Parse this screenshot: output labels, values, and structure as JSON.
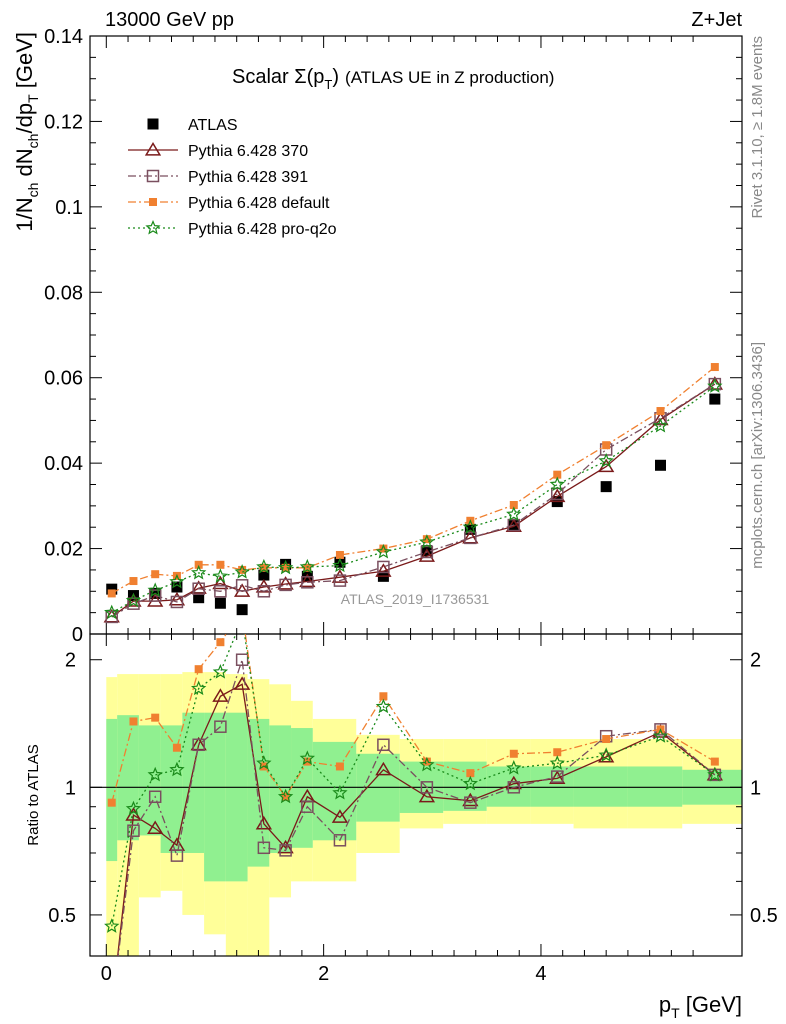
{
  "header": {
    "left": "13000 GeV pp",
    "right": "Z+Jet"
  },
  "side": {
    "rivet": "Rivet 3.1.10, ≥ 1.8M events",
    "mcplots": "mcplots.cern.ch [arXiv:1306.3436]"
  },
  "watermark": "ATLAS_2019_I1736531",
  "title": {
    "main": "Scalar Σ(p",
    "sub": "T",
    "close": ")",
    "rest": "(ATLAS UE in Z production)"
  },
  "colors": {
    "atlas": "#000000",
    "p370": "#7a1a1a",
    "p391": "#7a4f5f",
    "pdefault": "#f08030",
    "pq2o": "#1a8a1a",
    "band_inner": "#90f090",
    "band_outer": "#ffff99"
  },
  "chart_data": [
    {
      "type": "scatter",
      "panel": "main",
      "ylabel": "1/N_ch dN_ch/dp_T [GeV]",
      "xlim": [
        -0.15,
        5.85
      ],
      "ylim": [
        0,
        0.14
      ],
      "yticks": [
        0,
        0.02,
        0.04,
        0.06,
        0.08,
        0.1,
        0.12,
        0.14
      ],
      "tick_labels": [
        "0",
        "0.02",
        "0.04",
        "0.06",
        "0.08",
        "0.1",
        "0.12",
        "0.14"
      ],
      "x": [
        0.05,
        0.25,
        0.45,
        0.65,
        0.85,
        1.05,
        1.25,
        1.45,
        1.65,
        1.85,
        2.15,
        2.55,
        2.95,
        3.35,
        3.75,
        4.15,
        4.6,
        5.1,
        5.6
      ],
      "series": [
        {
          "name": "ATLAS",
          "key": "atlas",
          "marker": "square",
          "values": [
            0.0105,
            0.009,
            0.0095,
            0.011,
            0.0085,
            0.0072,
            0.0057,
            0.0138,
            0.0163,
            0.0135,
            0.0168,
            0.0135,
            0.0195,
            0.0245,
            0.0255,
            0.031,
            0.0345,
            0.0395,
            0.055
          ]
        },
        {
          "name": "Pythia 6.428 370",
          "key": "p370",
          "marker": "triangle",
          "values": [
            0.004,
            0.0077,
            0.0077,
            0.008,
            0.0107,
            0.0118,
            0.01,
            0.011,
            0.0117,
            0.0123,
            0.0133,
            0.0147,
            0.0182,
            0.0225,
            0.0252,
            0.0322,
            0.0392,
            0.0502,
            0.0585
          ]
        },
        {
          "name": "Pythia 6.428 391",
          "key": "p391",
          "marker": "opensquare",
          "values": [
            0.004,
            0.0071,
            0.009,
            0.0075,
            0.0106,
            0.01,
            0.0114,
            0.01,
            0.0115,
            0.0121,
            0.0125,
            0.0157,
            0.0192,
            0.0225,
            0.0255,
            0.0328,
            0.0432,
            0.0505,
            0.0585
          ]
        },
        {
          "name": "Pythia 6.428 default",
          "key": "pdefault",
          "marker": "filledsmallsquare",
          "values": [
            0.0095,
            0.0124,
            0.014,
            0.0136,
            0.0162,
            0.0162,
            0.015,
            0.0155,
            0.0155,
            0.0155,
            0.0185,
            0.02,
            0.0222,
            0.0265,
            0.0302,
            0.0373,
            0.0442,
            0.0522,
            0.0625
          ]
        },
        {
          "name": "Pythia 6.428 pro-q2o",
          "key": "pq2o",
          "marker": "star",
          "values": [
            0.005,
            0.0078,
            0.0102,
            0.0122,
            0.0143,
            0.0135,
            0.0145,
            0.0157,
            0.0155,
            0.0157,
            0.016,
            0.0192,
            0.0215,
            0.025,
            0.028,
            0.035,
            0.0405,
            0.0487,
            0.058
          ]
        }
      ]
    },
    {
      "type": "line",
      "panel": "ratio",
      "ylabel": "Ratio to ATLAS",
      "xlabel": "p_T [GeV]",
      "xlim": [
        -0.15,
        5.85
      ],
      "ylim": [
        0.4,
        2.3
      ],
      "log_y": true,
      "yticks": [
        0.5,
        1,
        2
      ],
      "tick_labels": [
        "0.5",
        "1",
        "2"
      ],
      "xticks": [
        0,
        2,
        4
      ],
      "xtick_labels": [
        "0",
        "2",
        "4"
      ],
      "bins": [
        [
          0,
          0.1
        ],
        [
          0.1,
          0.3
        ],
        [
          0.3,
          0.5
        ],
        [
          0.5,
          0.7
        ],
        [
          0.7,
          0.9
        ],
        [
          0.9,
          1.1
        ],
        [
          1.1,
          1.3
        ],
        [
          1.3,
          1.5
        ],
        [
          1.5,
          1.7
        ],
        [
          1.7,
          1.9
        ],
        [
          1.9,
          2.3
        ],
        [
          2.3,
          2.7
        ],
        [
          2.7,
          3.1
        ],
        [
          3.1,
          3.5
        ],
        [
          3.5,
          3.9
        ],
        [
          3.9,
          4.3
        ],
        [
          4.3,
          4.8
        ],
        [
          4.8,
          5.3
        ],
        [
          5.3,
          5.85
        ]
      ],
      "band_inner_lo": [
        0.67,
        0.75,
        0.77,
        0.7,
        0.7,
        0.6,
        0.6,
        0.65,
        0.7,
        0.72,
        0.75,
        0.83,
        0.87,
        0.88,
        0.9,
        0.9,
        0.9,
        0.9,
        0.91
      ],
      "band_inner_hi": [
        1.45,
        1.48,
        1.4,
        1.4,
        1.5,
        1.5,
        1.5,
        1.45,
        1.4,
        1.38,
        1.28,
        1.2,
        1.15,
        1.15,
        1.12,
        1.12,
        1.12,
        1.12,
        1.1
      ],
      "band_outer_lo": [
        0.33,
        0.4,
        0.55,
        0.57,
        0.5,
        0.45,
        0.4,
        0.4,
        0.55,
        0.6,
        0.6,
        0.7,
        0.8,
        0.82,
        0.82,
        0.82,
        0.8,
        0.8,
        0.82
      ],
      "band_outer_hi": [
        1.82,
        1.85,
        1.85,
        1.85,
        1.87,
        1.87,
        1.85,
        1.8,
        1.75,
        1.6,
        1.45,
        1.33,
        1.3,
        1.3,
        1.3,
        1.3,
        1.3,
        1.3,
        1.3
      ],
      "series": [
        {
          "name": "Pythia 6.428 370",
          "key": "p370",
          "marker": "triangle",
          "values": [
            0.3,
            0.86,
            0.8,
            0.73,
            1.26,
            1.64,
            1.75,
            0.82,
            0.72,
            0.95,
            0.85,
            1.1,
            0.95,
            0.93,
            1.02,
            1.05,
            1.18,
            1.35,
            1.07
          ]
        },
        {
          "name": "Pythia 6.428 391",
          "key": "p391",
          "marker": "opensquare",
          "values": [
            0.3,
            0.79,
            0.95,
            0.69,
            1.26,
            1.39,
            2.0,
            0.72,
            0.71,
            0.9,
            0.75,
            1.26,
            1.0,
            0.92,
            1.0,
            1.06,
            1.32,
            1.37,
            1.07
          ]
        },
        {
          "name": "Pythia 6.428 default",
          "key": "pdefault",
          "marker": "filledsmallsquare",
          "values": [
            0.92,
            1.43,
            1.46,
            1.24,
            1.9,
            2.2,
            2.6,
            1.12,
            0.95,
            1.15,
            1.12,
            1.64,
            1.15,
            1.08,
            1.2,
            1.21,
            1.3,
            1.37,
            1.15
          ]
        },
        {
          "name": "Pythia 6.428 pro-q2o",
          "key": "pq2o",
          "marker": "star",
          "values": [
            0.47,
            0.89,
            1.07,
            1.1,
            1.71,
            1.87,
            2.5,
            1.14,
            0.95,
            1.17,
            0.97,
            1.55,
            1.13,
            1.02,
            1.11,
            1.14,
            1.19,
            1.32,
            1.07
          ]
        }
      ]
    }
  ]
}
